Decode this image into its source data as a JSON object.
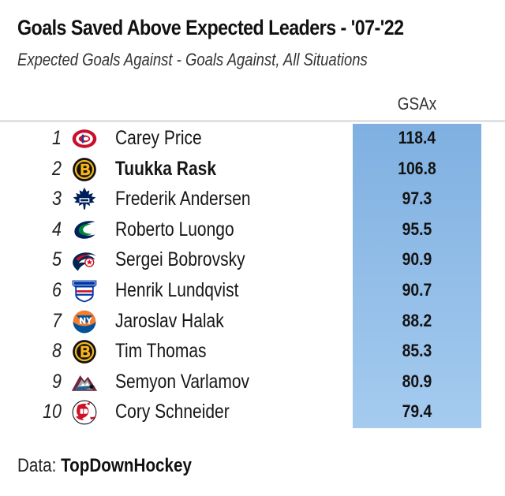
{
  "chart_data": {
    "type": "table",
    "title": "Goals Saved Above Expected Leaders - '07-'22",
    "subtitle": "Expected Goals Against - Goals Against, All Situations",
    "value_column": "GSAx",
    "rows": [
      {
        "rank": "1",
        "player": "Carey Price",
        "gsax": "118.4",
        "bold": false,
        "logo": "canadiens-logo-icon"
      },
      {
        "rank": "2",
        "player": "Tuukka Rask",
        "gsax": "106.8",
        "bold": true,
        "logo": "bruins-logo-icon"
      },
      {
        "rank": "3",
        "player": "Frederik Andersen",
        "gsax": "97.3",
        "bold": false,
        "logo": "maple-leafs-logo-icon"
      },
      {
        "rank": "4",
        "player": "Roberto Luongo",
        "gsax": "95.5",
        "bold": false,
        "logo": "canucks-logo-icon"
      },
      {
        "rank": "5",
        "player": "Sergei Bobrovsky",
        "gsax": "90.9",
        "bold": false,
        "logo": "blue-jackets-logo-icon"
      },
      {
        "rank": "6",
        "player": "Henrik Lundqvist",
        "gsax": "90.7",
        "bold": false,
        "logo": "rangers-logo-icon"
      },
      {
        "rank": "7",
        "player": "Jaroslav Halak",
        "gsax": "88.2",
        "bold": false,
        "logo": "islanders-logo-icon"
      },
      {
        "rank": "8",
        "player": "Tim Thomas",
        "gsax": "85.3",
        "bold": false,
        "logo": "bruins-logo-icon"
      },
      {
        "rank": "9",
        "player": "Semyon Varlamov",
        "gsax": "80.9",
        "bold": false,
        "logo": "avalanche-logo-icon"
      },
      {
        "rank": "10",
        "player": "Cory Schneider",
        "gsax": "79.4",
        "bold": false,
        "logo": "devils-logo-icon"
      }
    ],
    "band_color_top": "#7fb0e1",
    "band_color_bottom": "#a5cbef"
  },
  "footer": {
    "label": "Data: ",
    "source": "TopDownHockey"
  }
}
